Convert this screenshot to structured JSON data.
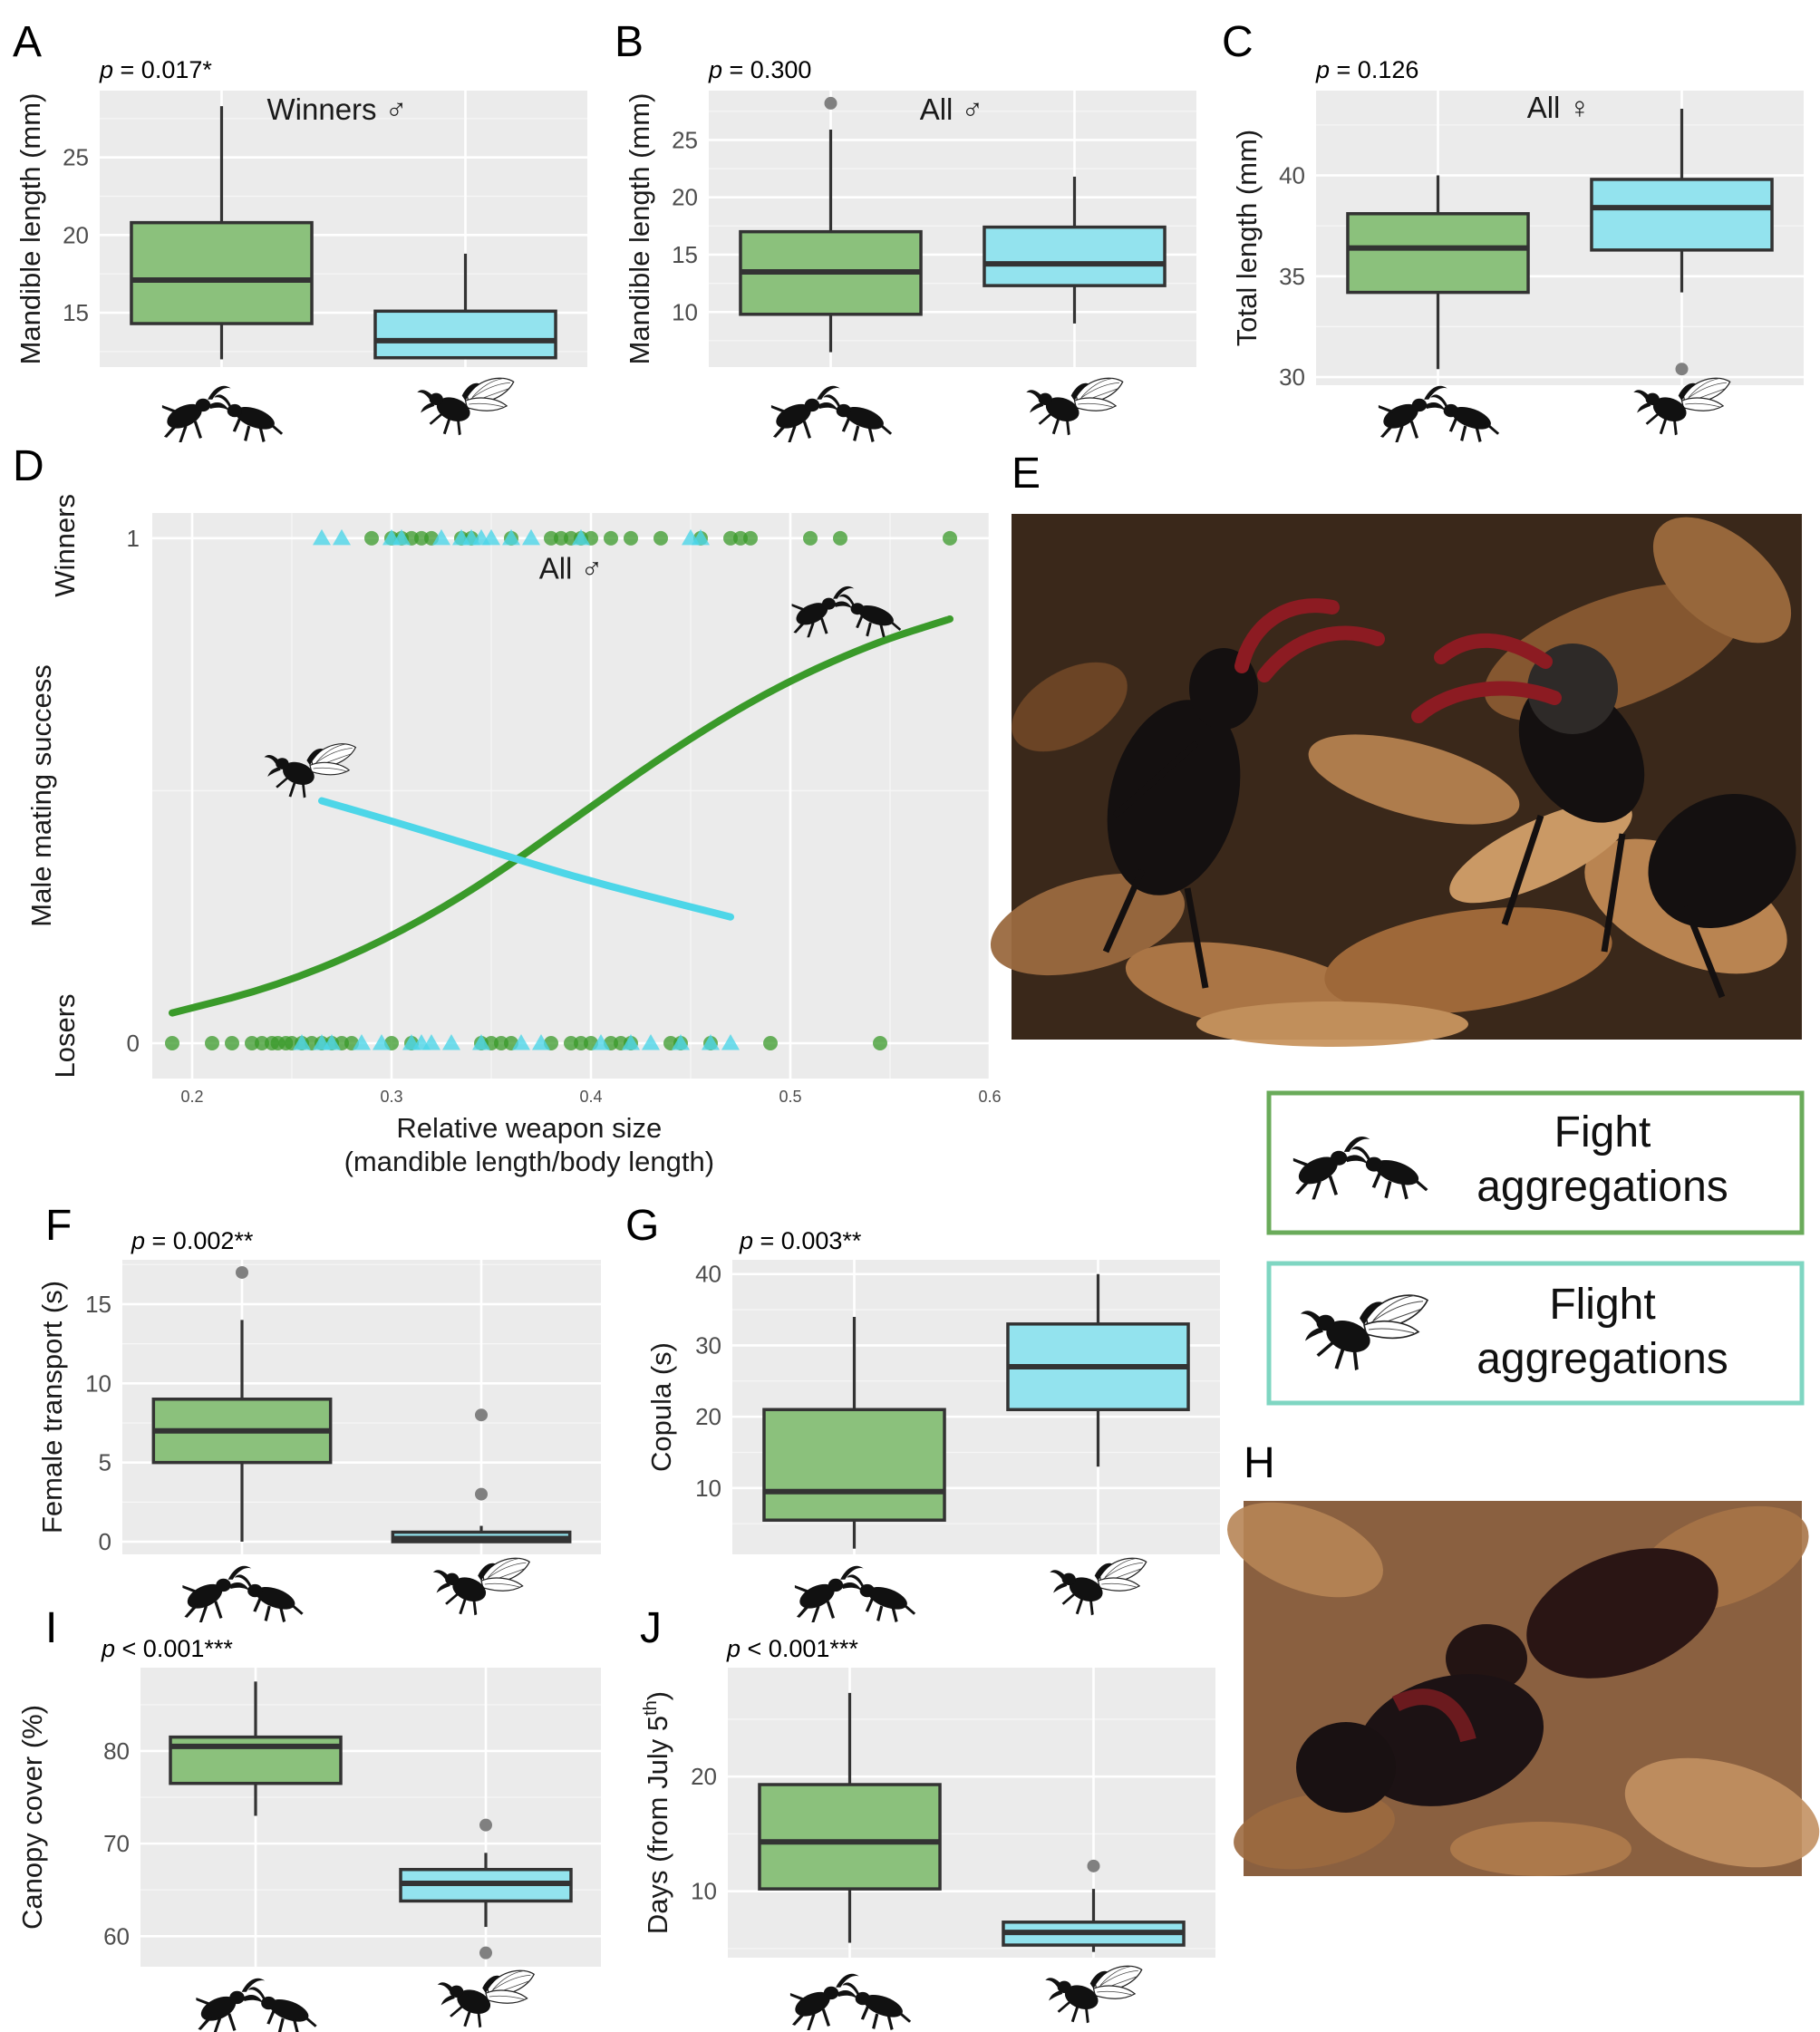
{
  "chart_data": [
    {
      "panel": "A",
      "type": "box",
      "pvalue": "p = 0.017*",
      "subset": "Winners ♂",
      "ylabel": "Mandible length (mm)",
      "ylim": [
        11.5,
        29.3
      ],
      "yticks": [
        15,
        20,
        25
      ],
      "boxes": [
        {
          "group": "fight",
          "min": 12.0,
          "q1": 14.3,
          "median": 17.1,
          "q3": 20.8,
          "max": 28.3,
          "outliers": []
        },
        {
          "group": "flight",
          "min": 12.0,
          "q1": 12.1,
          "median": 13.2,
          "q3": 15.1,
          "max": 18.8,
          "outliers": []
        }
      ]
    },
    {
      "panel": "B",
      "type": "box",
      "pvalue": "p = 0.300",
      "subset": "All ♂",
      "ylabel": "Mandible length (mm)",
      "ylim": [
        5.2,
        29.3
      ],
      "yticks": [
        10,
        15,
        20,
        25
      ],
      "boxes": [
        {
          "group": "fight",
          "min": 6.5,
          "q1": 9.8,
          "median": 13.5,
          "q3": 17.0,
          "max": 25.9,
          "outliers": [
            28.2
          ]
        },
        {
          "group": "flight",
          "min": 9.0,
          "q1": 12.3,
          "median": 14.2,
          "q3": 17.4,
          "max": 21.8,
          "outliers": []
        }
      ]
    },
    {
      "panel": "C",
      "type": "box",
      "pvalue": "p = 0.126",
      "subset": "All ♀",
      "ylabel": "Total length (mm)",
      "ylim": [
        29.6,
        44.2
      ],
      "yticks": [
        30,
        35,
        40
      ],
      "boxes": [
        {
          "group": "fight",
          "min": 30.4,
          "q1": 34.2,
          "median": 36.4,
          "q3": 38.1,
          "max": 40.0,
          "outliers": []
        },
        {
          "group": "flight",
          "min": 34.2,
          "q1": 36.3,
          "median": 38.4,
          "q3": 39.8,
          "max": 43.3,
          "outliers": [
            30.4
          ]
        }
      ]
    },
    {
      "panel": "D",
      "type": "scatter",
      "subset": "All ♂",
      "xlabel_line1": "Relative weapon size",
      "xlabel_line2": "(mandible length/body length)",
      "ylabel": "Male mating success",
      "xlim": [
        0.18,
        0.6
      ],
      "xticks": [
        0.2,
        0.3,
        0.4,
        0.5,
        0.6
      ],
      "xtick_labels": [
        "0.2",
        "0.3",
        "0.4",
        "0.5",
        "0.6"
      ],
      "ylim": [
        -0.07,
        1.05
      ],
      "yticks": [
        0,
        1
      ],
      "ytick_labels": [
        "0",
        "1"
      ],
      "y_category_labels": [
        "Losers",
        "Winners"
      ],
      "series": [
        {
          "group": "fight",
          "marker": "circle",
          "color": "#3a9a2a",
          "winners_x": [
            0.29,
            0.3,
            0.305,
            0.31,
            0.315,
            0.32,
            0.335,
            0.34,
            0.36,
            0.38,
            0.385,
            0.39,
            0.395,
            0.4,
            0.41,
            0.42,
            0.435,
            0.455,
            0.47,
            0.475,
            0.48,
            0.51,
            0.525,
            0.58
          ],
          "losers_x": [
            0.19,
            0.21,
            0.22,
            0.23,
            0.235,
            0.24,
            0.243,
            0.247,
            0.25,
            0.255,
            0.26,
            0.265,
            0.27,
            0.275,
            0.28,
            0.3,
            0.31,
            0.345,
            0.35,
            0.355,
            0.36,
            0.38,
            0.39,
            0.395,
            0.4,
            0.41,
            0.415,
            0.42,
            0.44,
            0.445,
            0.46,
            0.49,
            0.545
          ],
          "curve_x": [
            0.19,
            0.24,
            0.29,
            0.34,
            0.39,
            0.44,
            0.49,
            0.54,
            0.58
          ],
          "curve_y": [
            0.06,
            0.11,
            0.19,
            0.3,
            0.44,
            0.58,
            0.7,
            0.79,
            0.84
          ]
        },
        {
          "group": "flight",
          "marker": "triangle",
          "color": "#4dd6e8",
          "winners_x": [
            0.265,
            0.275,
            0.3,
            0.305,
            0.325,
            0.335,
            0.34,
            0.345,
            0.35,
            0.36,
            0.37,
            0.395,
            0.45,
            0.455
          ],
          "losers_x": [
            0.255,
            0.265,
            0.27,
            0.285,
            0.295,
            0.31,
            0.315,
            0.32,
            0.33,
            0.345,
            0.365,
            0.375,
            0.405,
            0.42,
            0.43,
            0.445,
            0.46,
            0.47
          ],
          "curve_x": [
            0.265,
            0.3,
            0.35,
            0.4,
            0.45,
            0.47
          ],
          "curve_y": [
            0.48,
            0.44,
            0.38,
            0.32,
            0.27,
            0.25
          ]
        }
      ]
    },
    {
      "panel": "F",
      "type": "box",
      "pvalue": "p = 0.002**",
      "ylabel": "Female transport (s)",
      "ylim": [
        -0.8,
        17.8
      ],
      "yticks": [
        0,
        5,
        10,
        15
      ],
      "boxes": [
        {
          "group": "fight",
          "min": 0.0,
          "q1": 5.0,
          "median": 7.0,
          "q3": 9.0,
          "max": 14.0,
          "outliers": [
            17.0
          ]
        },
        {
          "group": "flight",
          "min": 0.0,
          "q1": 0.0,
          "median": 0.2,
          "q3": 0.6,
          "max": 1.0,
          "outliers": [
            3.0,
            8.0
          ]
        }
      ]
    },
    {
      "panel": "G",
      "type": "box",
      "pvalue": "p = 0.003**",
      "ylabel": "Copula (s)",
      "ylim": [
        0.7,
        42.0
      ],
      "yticks": [
        10,
        20,
        30,
        40
      ],
      "boxes": [
        {
          "group": "fight",
          "min": 1.5,
          "q1": 5.5,
          "median": 9.5,
          "q3": 21.0,
          "max": 34.0,
          "outliers": []
        },
        {
          "group": "flight",
          "min": 13.0,
          "q1": 21.0,
          "median": 27.0,
          "q3": 33.0,
          "max": 40.0,
          "outliers": []
        }
      ]
    },
    {
      "panel": "I",
      "type": "box",
      "pvalue": "p < 0.001***",
      "ylabel": "Canopy cover (%)",
      "ylim": [
        56.7,
        89.0
      ],
      "yticks": [
        60,
        70,
        80
      ],
      "boxes": [
        {
          "group": "fight",
          "min": 73.0,
          "q1": 76.5,
          "median": 80.5,
          "q3": 81.5,
          "max": 87.5,
          "outliers": []
        },
        {
          "group": "flight",
          "min": 61.0,
          "q1": 63.8,
          "median": 65.7,
          "q3": 67.2,
          "max": 69.0,
          "outliers": [
            72.0,
            58.2
          ]
        }
      ]
    },
    {
      "panel": "J",
      "type": "box",
      "pvalue": "p < 0.001***",
      "ylabel": "Days (from July 5",
      "ylabel_superscript": "th",
      "ylabel_end": ")",
      "ylim": [
        4.2,
        29.5
      ],
      "yticks": [
        10,
        20
      ],
      "boxes": [
        {
          "group": "fight",
          "min": 5.5,
          "q1": 10.2,
          "median": 14.3,
          "q3": 19.3,
          "max": 27.3,
          "outliers": []
        },
        {
          "group": "flight",
          "min": 4.7,
          "q1": 5.3,
          "median": 6.4,
          "q3": 7.3,
          "max": 10.2,
          "outliers": [
            12.2
          ]
        }
      ]
    }
  ],
  "panel_letters": {
    "A": "A",
    "B": "B",
    "C": "C",
    "D": "D",
    "E": "E",
    "F": "F",
    "G": "G",
    "H": "H",
    "I": "I",
    "J": "J"
  },
  "legend": {
    "fight": {
      "line1": "Fight",
      "line2": "aggregations",
      "border_color": "#6aab5a"
    },
    "flight": {
      "line1": "Flight",
      "line2": "aggregations",
      "border_color": "#7fd6c2"
    }
  },
  "colors": {
    "fight_box": "#8bc17c",
    "flight_box": "#93e3ee",
    "fight_line": "#3a9a2a",
    "flight_line": "#4dd6e8",
    "panel_bg": "#ebebeb"
  },
  "icons": {
    "fight": "fighting-beetles-icon",
    "flight": "flying-beetle-icon",
    "photo_E": "two-stag-beetles-fighting-photo",
    "photo_H": "stag-beetles-mating-photo"
  }
}
